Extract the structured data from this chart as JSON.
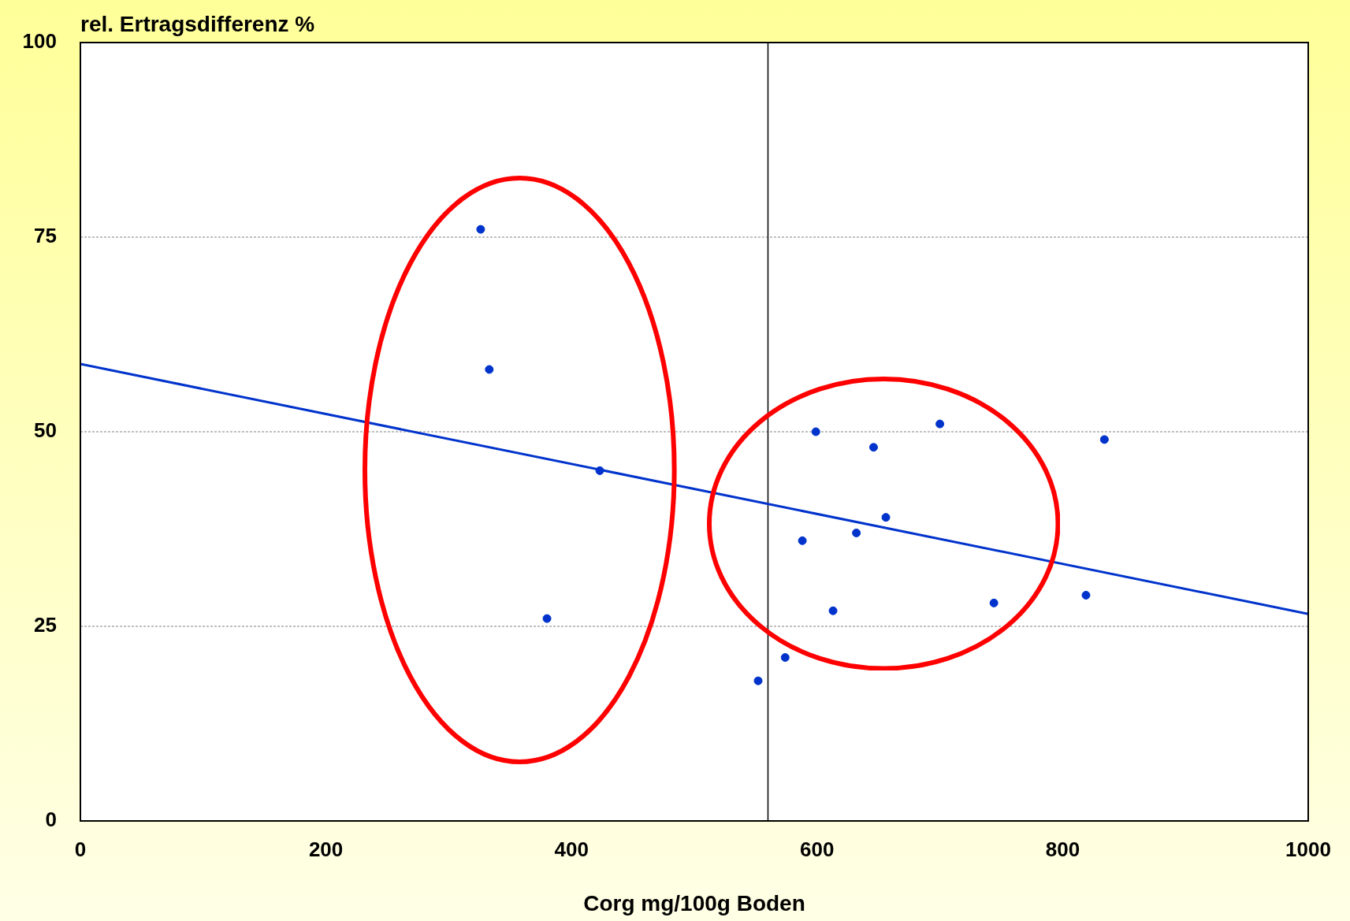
{
  "chart_data": {
    "type": "scatter",
    "xlabel": "Corg mg/100g Boden",
    "ylabel": "rel. Ertragsdifferenz %",
    "xlim": [
      0,
      1000
    ],
    "ylim": [
      0,
      100
    ],
    "xticks": [
      0,
      200,
      400,
      600,
      800,
      1000
    ],
    "yticks": [
      0,
      25,
      50,
      75,
      100
    ],
    "grid": "y",
    "series": [
      {
        "marker": "circle",
        "color": "#0033cc",
        "x": [
          326,
          333,
          423,
          380,
          552,
          574,
          588,
          599,
          613,
          632,
          646,
          656,
          700,
          744,
          819,
          834
        ],
        "values": [
          76,
          58,
          45,
          26,
          18,
          21,
          36,
          50,
          27,
          37,
          48,
          39,
          51,
          28,
          29,
          49
        ]
      },
      {
        "type": "line",
        "marker": "none",
        "color": "#0033cc",
        "x": [
          0,
          1000
        ],
        "values": [
          58.7,
          26.6
        ]
      }
    ],
    "ref_lines": [
      {
        "axis": "x",
        "value": 560,
        "color": "#000000"
      }
    ]
  }
}
